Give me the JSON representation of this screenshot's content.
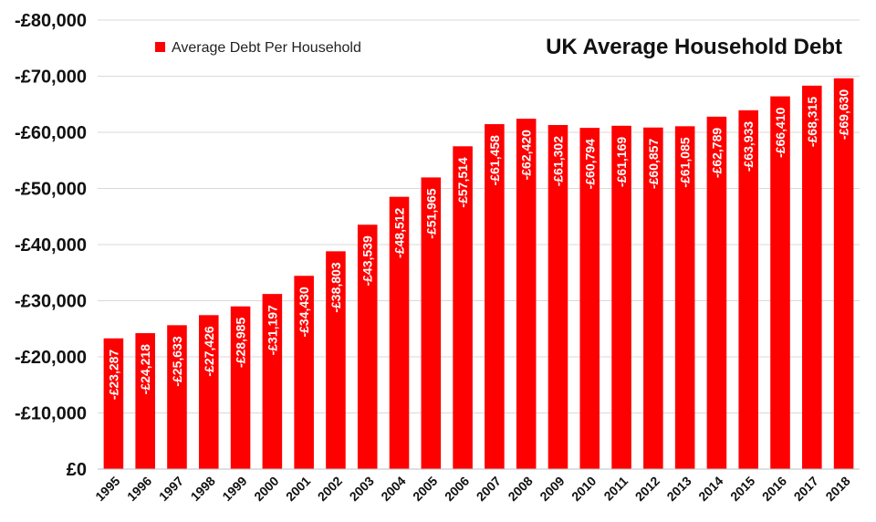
{
  "chart_data": {
    "type": "bar",
    "title": "UK Average Household Debt",
    "xlabel": "",
    "ylabel": "",
    "categories": [
      "1995",
      "1996",
      "1997",
      "1998",
      "1999",
      "2000",
      "2001",
      "2002",
      "2003",
      "2004",
      "2005",
      "2006",
      "2007",
      "2008",
      "2009",
      "2010",
      "2011",
      "2012",
      "2013",
      "2014",
      "2015",
      "2016",
      "2017",
      "2018"
    ],
    "series": [
      {
        "name": "Average Debt Per Household",
        "color": "#ff0000",
        "values": [
          23287,
          24218,
          25633,
          27426,
          28985,
          31197,
          34430,
          38803,
          43539,
          48512,
          51965,
          57514,
          61458,
          62420,
          61302,
          60794,
          61169,
          60857,
          61085,
          62789,
          63933,
          66410,
          68315,
          69630
        ],
        "data_labels": [
          "-£23,287",
          "-£24,218",
          "-£25,633",
          "-£27,426",
          "-£28,985",
          "-£31,197",
          "-£34,430",
          "-£38,803",
          "-£43,539",
          "-£48,512",
          "-£51,965",
          "-£57,514",
          "-£61,458",
          "-£62,420",
          "-£61,302",
          "-£60,794",
          "-£61,169",
          "-£60,857",
          "-£61,085",
          "-£62,789",
          "-£63,933",
          "-£66,410",
          "-£68,315",
          "-£69,630"
        ]
      }
    ],
    "ylim": [
      0,
      80000
    ],
    "yticks": [
      0,
      10000,
      20000,
      30000,
      40000,
      50000,
      60000,
      70000,
      80000
    ],
    "ytick_labels": [
      "£0",
      "-£10,000",
      "-£20,000",
      "-£30,000",
      "-£40,000",
      "-£50,000",
      "-£60,000",
      "-£70,000",
      "-£80,000"
    ],
    "grid": true,
    "legend_position": "top-left",
    "data_label_color": "#ffffff",
    "bar_color": "#ff0000"
  }
}
